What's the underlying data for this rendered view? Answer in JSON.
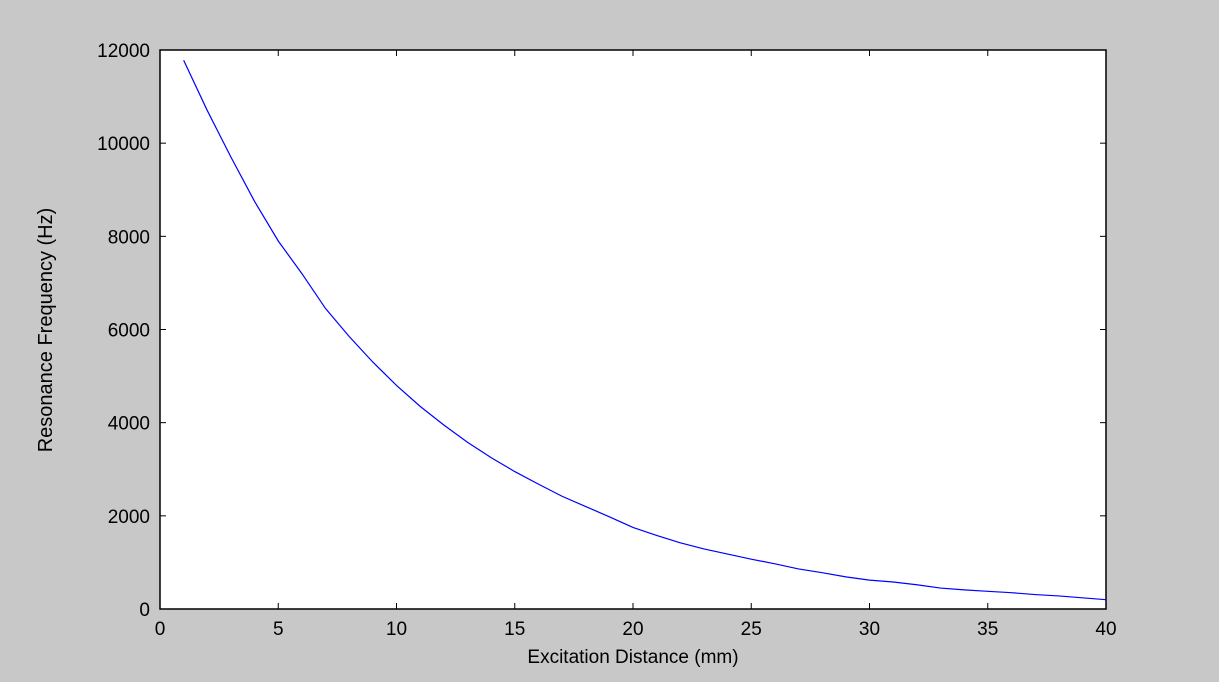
{
  "chart_data": {
    "type": "line",
    "x_label": "Excitation Distance (mm)",
    "y_label": "Resonance Frequency (Hz)",
    "x": [
      1,
      2,
      3,
      4,
      5,
      6,
      7,
      8,
      9,
      10,
      11,
      12,
      13,
      14,
      15,
      16,
      17,
      18,
      19,
      20,
      21,
      22,
      23,
      24,
      25,
      26,
      27,
      28,
      29,
      30,
      31,
      32,
      33,
      34,
      35,
      36,
      37,
      38,
      39,
      40
    ],
    "series": [
      {
        "color": "#0000ff",
        "values": [
          11780,
          10700,
          9700,
          8750,
          7900,
          7200,
          6450,
          5850,
          5300,
          4800,
          4350,
          3950,
          3580,
          3250,
          2950,
          2680,
          2420,
          2200,
          1980,
          1750,
          1580,
          1420,
          1290,
          1180,
          1070,
          970,
          860,
          780,
          690,
          620,
          580,
          520,
          450,
          410,
          380,
          350,
          310,
          280,
          240,
          200
        ]
      }
    ],
    "xlim": [
      0,
      40
    ],
    "ylim": [
      0,
      12000
    ],
    "xticks": [
      0,
      5,
      10,
      15,
      20,
      25,
      30,
      35,
      40
    ],
    "yticks": [
      0,
      2000,
      4000,
      6000,
      8000,
      10000,
      12000
    ],
    "grid": false
  }
}
